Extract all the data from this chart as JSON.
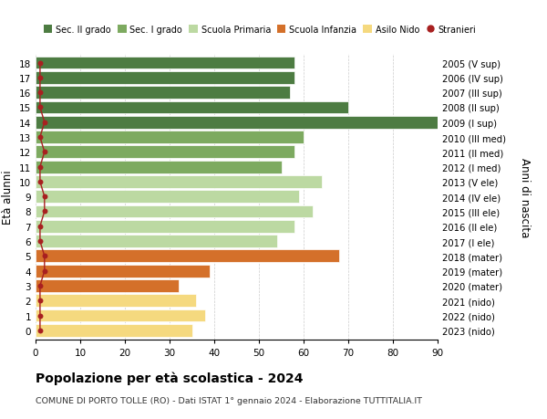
{
  "ages": [
    18,
    17,
    16,
    15,
    14,
    13,
    12,
    11,
    10,
    9,
    8,
    7,
    6,
    5,
    4,
    3,
    2,
    1,
    0
  ],
  "values": [
    58,
    58,
    57,
    70,
    90,
    60,
    58,
    55,
    64,
    59,
    62,
    58,
    54,
    68,
    39,
    32,
    36,
    38,
    35
  ],
  "stranieri": [
    1,
    1,
    1,
    1,
    2,
    1,
    2,
    1,
    1,
    2,
    2,
    1,
    1,
    2,
    2,
    1,
    1,
    1,
    1
  ],
  "right_labels": [
    "2005 (V sup)",
    "2006 (IV sup)",
    "2007 (III sup)",
    "2008 (II sup)",
    "2009 (I sup)",
    "2010 (III med)",
    "2011 (II med)",
    "2012 (I med)",
    "2013 (V ele)",
    "2014 (IV ele)",
    "2015 (III ele)",
    "2016 (II ele)",
    "2017 (I ele)",
    "2018 (mater)",
    "2019 (mater)",
    "2020 (mater)",
    "2021 (nido)",
    "2022 (nido)",
    "2023 (nido)"
  ],
  "bar_colors": [
    "#4d7c42",
    "#4d7c42",
    "#4d7c42",
    "#4d7c42",
    "#4d7c42",
    "#7daa60",
    "#7daa60",
    "#7daa60",
    "#bcd9a2",
    "#bcd9a2",
    "#bcd9a2",
    "#bcd9a2",
    "#bcd9a2",
    "#d4702a",
    "#d4702a",
    "#d4702a",
    "#f5d97f",
    "#f5d97f",
    "#f5d97f"
  ],
  "legend_colors": [
    "#4d7c42",
    "#7daa60",
    "#bcd9a2",
    "#d4702a",
    "#f5d97f"
  ],
  "legend_labels": [
    "Sec. II grado",
    "Sec. I grado",
    "Scuola Primaria",
    "Scuola Infanzia",
    "Asilo Nido",
    "Stranieri"
  ],
  "stranieri_color": "#a82020",
  "ylabel": "Età alunni",
  "ylabel_right": "Anni di nascita",
  "title": "Popolazione per età scolastica - 2024",
  "subtitle": "COMUNE DI PORTO TOLLE (RO) - Dati ISTAT 1° gennaio 2024 - Elaborazione TUTTITALIA.IT",
  "xlim": [
    0,
    90
  ],
  "xticks": [
    0,
    10,
    20,
    30,
    40,
    50,
    60,
    70,
    80,
    90
  ],
  "bg_color": "#ffffff",
  "bar_height": 0.85,
  "grid_color": "#cccccc"
}
